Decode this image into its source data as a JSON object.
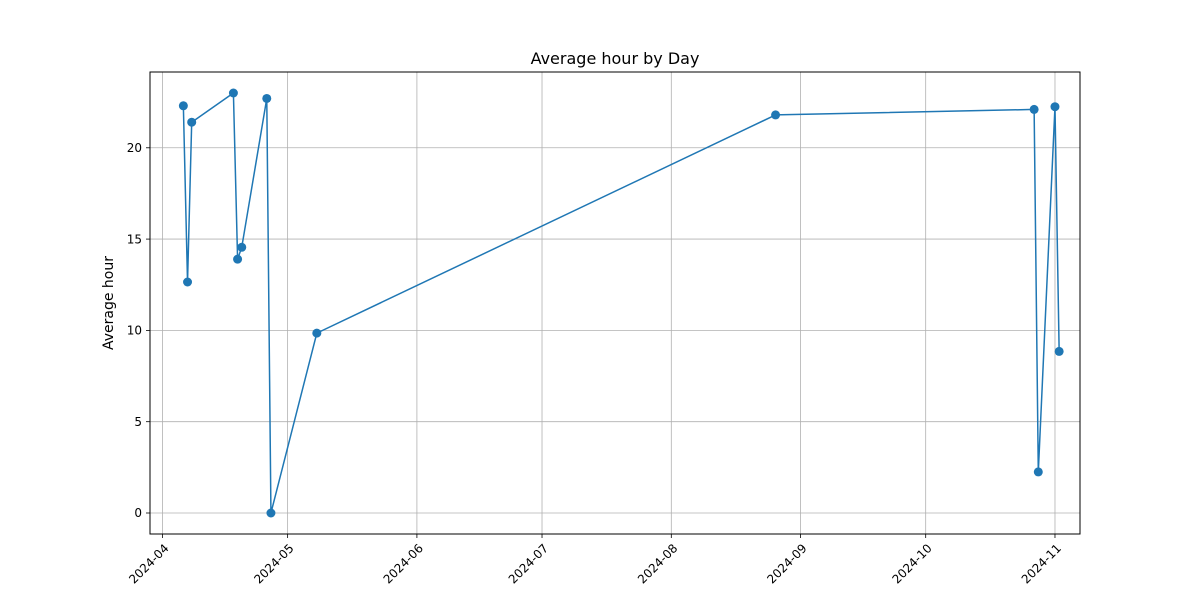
{
  "chart_data": {
    "type": "line",
    "title": "Average hour by Day",
    "xlabel": "",
    "ylabel": "Average hour",
    "x_is_date": true,
    "xlim": [
      "2024-03-29",
      "2024-11-07"
    ],
    "ylim": [
      -1.15,
      24.15
    ],
    "grid": true,
    "x_ticks": [
      "2024-04-01",
      "2024-05-01",
      "2024-06-01",
      "2024-07-01",
      "2024-08-01",
      "2024-09-01",
      "2024-10-01",
      "2024-11-01"
    ],
    "x_tick_labels": [
      "2024-04",
      "2024-05",
      "2024-06",
      "2024-07",
      "2024-08",
      "2024-09",
      "2024-10",
      "2024-11"
    ],
    "y_ticks": [
      0,
      5,
      10,
      15,
      20
    ],
    "y_tick_labels": [
      "0",
      "5",
      "10",
      "15",
      "20"
    ],
    "color": "#1f77b4",
    "x": [
      "2024-04-06",
      "2024-04-07",
      "2024-04-08",
      "2024-04-18",
      "2024-04-19",
      "2024-04-20",
      "2024-04-26",
      "2024-04-27",
      "2024-05-08",
      "2024-08-26",
      "2024-10-27",
      "2024-10-28",
      "2024-11-01",
      "2024-11-02"
    ],
    "y": [
      22.3,
      12.65,
      21.4,
      23.0,
      13.9,
      14.55,
      22.7,
      0.0,
      9.85,
      21.8,
      22.1,
      2.25,
      22.25,
      8.85
    ]
  }
}
